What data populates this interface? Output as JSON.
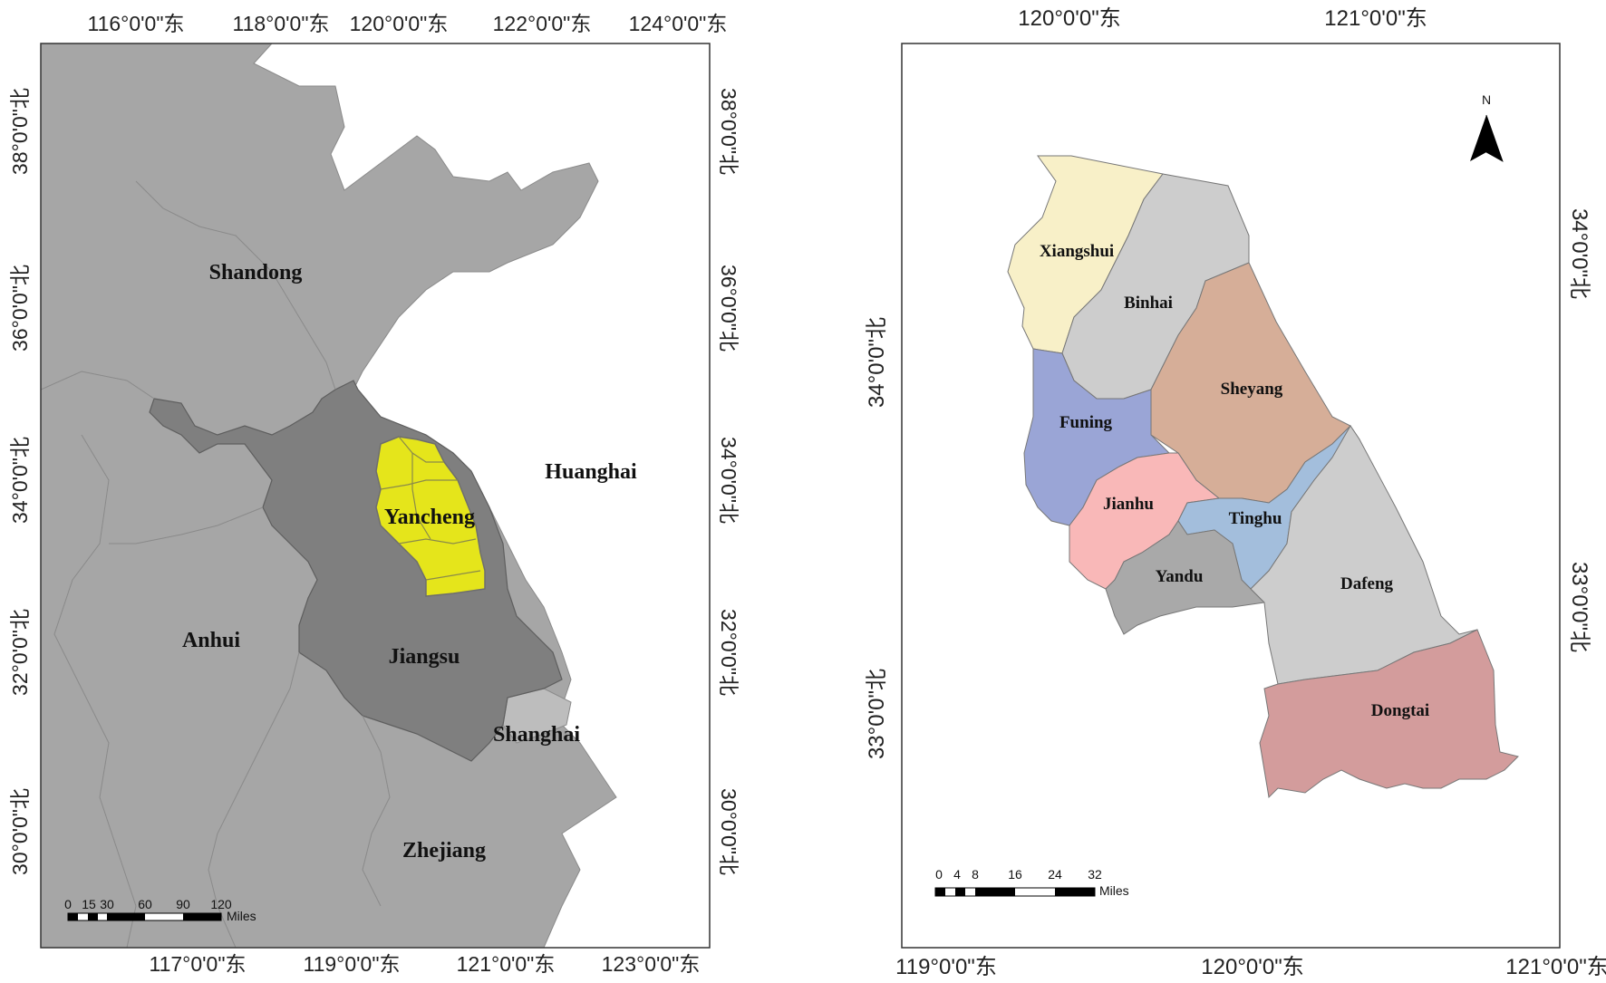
{
  "left_map": {
    "top_lon_labels": [
      "116°0'0\"东",
      "118°0'0\"东",
      "120°0'0\"东",
      "122°0'0\"东",
      "124°0'0\"东"
    ],
    "bottom_lon_labels": [
      "117°0'0\"东",
      "119°0'0\"东",
      "121°0'0\"东",
      "123°0'0\"东"
    ],
    "left_lat_labels": [
      "38°0'0\"北",
      "36°0'0\"北",
      "34°0'0\"北",
      "32°0'0\"北",
      "30°0'0\"北"
    ],
    "right_lat_labels": [
      "38°0'0\"北",
      "36°0'0\"北",
      "34°0'0\"北",
      "32°0'0\"北",
      "30°0'0\"北"
    ],
    "regions": {
      "shandong": "Shandong",
      "huanghai": "Huanghai",
      "yancheng": "Yancheng",
      "anhui": "Anhui",
      "jiangsu": "Jiangsu",
      "shanghai": "Shanghai",
      "zhejiang": "Zhejiang"
    },
    "scale": {
      "ticks": [
        "0",
        "15",
        "30",
        "60",
        "90",
        "120"
      ],
      "unit": "Miles"
    },
    "colors": {
      "province": "#a6a6a6",
      "jiangsu": "#7f7f7f",
      "yancheng": "#e5e51b",
      "sea": "#ffffff"
    }
  },
  "right_map": {
    "top_lon_labels": [
      "120°0'0\"东",
      "121°0'0\"东"
    ],
    "bottom_lon_labels": [
      "119°0'0\"东",
      "120°0'0\"东",
      "121°0'0\"东"
    ],
    "left_lat_labels": [
      "34°0'0\"北",
      "33°0'0\"北"
    ],
    "right_lat_labels": [
      "34°0'0\"北",
      "33°0'0\"北"
    ],
    "north_arrow": "N",
    "districts": {
      "xiangshui": "Xiangshui",
      "binhai": "Binhai",
      "sheyang": "Sheyang",
      "funing": "Funing",
      "jianhu": "Jianhu",
      "tinghu": "Tinghu",
      "yandu": "Yandu",
      "dafeng": "Dafeng",
      "dongtai": "Dongtai"
    },
    "scale": {
      "ticks": [
        "0",
        "4",
        "8",
        "16",
        "24",
        "32"
      ],
      "unit": "Miles"
    },
    "colors": {
      "xiangshui": "#f8f0c8",
      "binhai": "#cdcdcd",
      "sheyang": "#d6ae98",
      "funing": "#9aa5d6",
      "jianhu": "#f9b8b8",
      "tinghu": "#a3bedc",
      "yandu": "#a9a9a9",
      "dafeng": "#cdcdcd",
      "dongtai": "#d39c9c"
    }
  }
}
